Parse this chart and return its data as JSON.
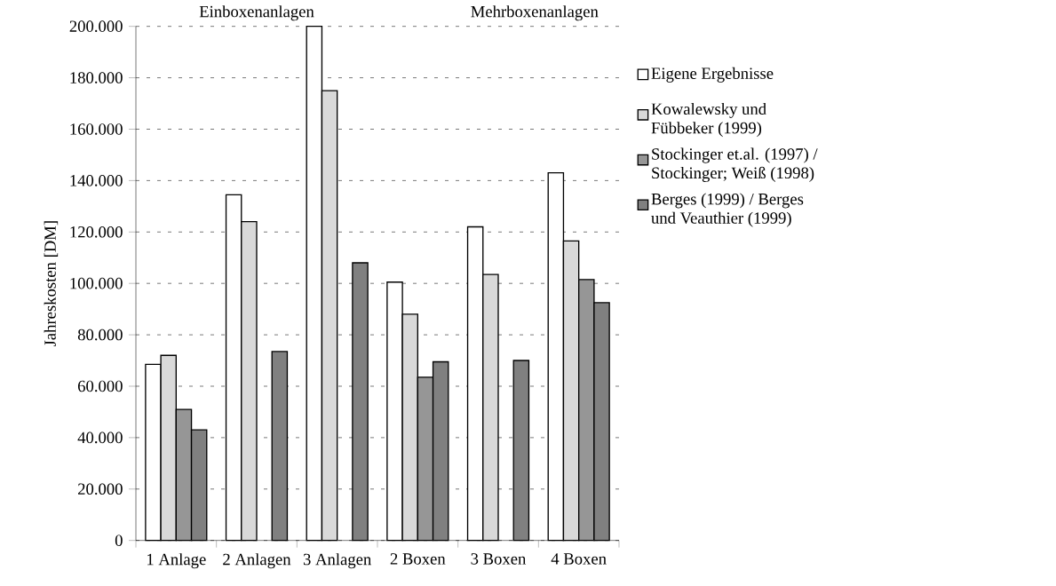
{
  "chart_data": {
    "type": "bar",
    "ylabel": "Jahreskosten [DM]",
    "categories": [
      "1 Anlage",
      "2 Anlagen",
      "3 Anlagen",
      "2 Boxen",
      "3 Boxen",
      "4 Boxen"
    ],
    "series": [
      {
        "name": "Eigene Ergebnisse",
        "color": "#ffffff",
        "values": [
          68500,
          134500,
          200000,
          100500,
          122000,
          143000
        ]
      },
      {
        "name": "Kowalewsky und Fübbeker (1999)",
        "color": "#d9d9d9",
        "values": [
          72000,
          124000,
          175000,
          88000,
          103500,
          116500
        ]
      },
      {
        "name": "Stockinger et.al. (1997) / Stockinger; Weiß (1998)",
        "color": "#969696",
        "values": [
          51000,
          null,
          null,
          63500,
          null,
          101500
        ]
      },
      {
        "name": "Berges (1999) / Berges und Veauthier (1999)",
        "color": "#808080",
        "values": [
          43000,
          73500,
          108000,
          69500,
          70000,
          92500
        ]
      }
    ],
    "ylim": [
      0,
      200000
    ],
    "yticks": [
      0,
      {
        "value": 20000,
        "label": "20.000"
      },
      {
        "value": 40000,
        "label": "40.000"
      },
      {
        "value": 60000,
        "label": "60.000"
      },
      {
        "value": 80000,
        "label": "80.000"
      },
      {
        "value": 100000,
        "label": "100.000"
      },
      {
        "value": 120000,
        "label": "120.000"
      },
      {
        "value": 140000,
        "label": "140.000"
      },
      {
        "value": 160000,
        "label": "160.000"
      },
      {
        "value": 180000,
        "label": "180.000"
      },
      {
        "value": 200000,
        "label": "200.000"
      }
    ],
    "annotations": [
      "Einboxenanlagen",
      "Mehrboxenanlagen"
    ],
    "grid": "y",
    "legend": "right"
  }
}
